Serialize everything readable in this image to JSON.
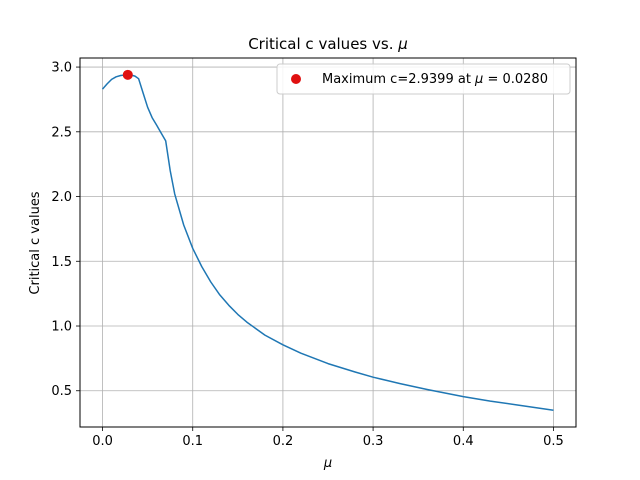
{
  "chart_data": {
    "type": "line",
    "title_text": "Critical c values vs. ",
    "title_mu": "μ",
    "xlabel": "μ",
    "ylabel": "Critical c values",
    "xlim": [
      -0.025,
      0.525
    ],
    "ylim": [
      0.22,
      3.07
    ],
    "xticks": [
      0.0,
      0.1,
      0.2,
      0.3,
      0.4,
      0.5
    ],
    "xtick_labels": [
      "0.0",
      "0.1",
      "0.2",
      "0.3",
      "0.4",
      "0.5"
    ],
    "yticks": [
      0.5,
      1.0,
      1.5,
      2.0,
      2.5,
      3.0
    ],
    "ytick_labels": [
      "0.5",
      "1.0",
      "1.5",
      "2.0",
      "2.5",
      "3.0"
    ],
    "grid": true,
    "legend_position": "top-right",
    "series": [
      {
        "color": "#1f77b4",
        "x": [
          0.0,
          0.005,
          0.01,
          0.015,
          0.02,
          0.025,
          0.028,
          0.032,
          0.036,
          0.04,
          0.045,
          0.05,
          0.055,
          0.06,
          0.065,
          0.07,
          0.075,
          0.08,
          0.09,
          0.1,
          0.11,
          0.12,
          0.13,
          0.14,
          0.15,
          0.16,
          0.18,
          0.2,
          0.22,
          0.25,
          0.28,
          0.3,
          0.33,
          0.36,
          0.4,
          0.43,
          0.46,
          0.5
        ],
        "y": [
          2.83,
          2.87,
          2.905,
          2.925,
          2.935,
          2.939,
          2.94,
          2.938,
          2.93,
          2.91,
          2.8,
          2.69,
          2.61,
          2.55,
          2.49,
          2.43,
          2.2,
          2.02,
          1.78,
          1.6,
          1.46,
          1.34,
          1.24,
          1.16,
          1.09,
          1.03,
          0.93,
          0.855,
          0.79,
          0.71,
          0.645,
          0.605,
          0.555,
          0.51,
          0.455,
          0.42,
          0.39,
          0.35
        ]
      }
    ],
    "highlight": {
      "label": "Maximum c=2.9399 at ",
      "label_mu": "μ",
      "label_suffix": " = 0.0280",
      "x": 0.028,
      "y": 2.9399,
      "color": "#e01010"
    }
  }
}
